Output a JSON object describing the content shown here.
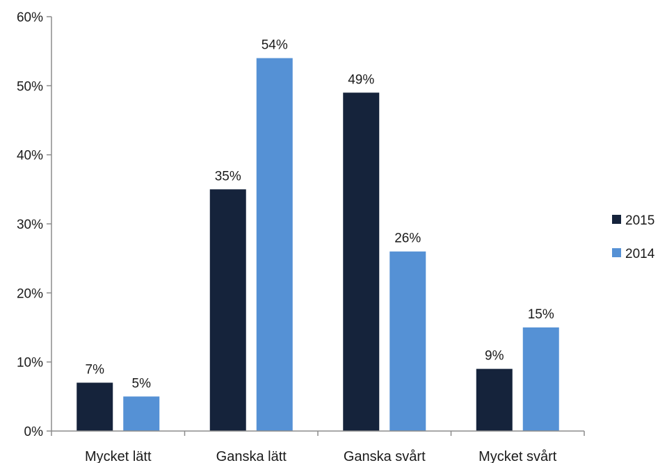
{
  "chart_data": {
    "type": "bar",
    "categories": [
      "Mycket lätt",
      "Ganska lätt",
      "Ganska svårt",
      "Mycket svårt"
    ],
    "series": [
      {
        "name": "2015",
        "values": [
          7,
          35,
          49,
          9
        ],
        "labels": [
          "7%",
          "35%",
          "49%",
          "9%"
        ],
        "color": "#15233b"
      },
      {
        "name": "2014",
        "values": [
          5,
          54,
          26,
          15
        ],
        "labels": [
          "5%",
          "54%",
          "26%",
          "15%"
        ],
        "color": "#5591d5"
      }
    ],
    "yticks": [
      "0%",
      "10%",
      "20%",
      "30%",
      "40%",
      "50%",
      "60%"
    ],
    "ylim": [
      0,
      60
    ],
    "title": "",
    "xlabel": "",
    "ylabel": "",
    "grid": false,
    "legend_position": "right"
  }
}
